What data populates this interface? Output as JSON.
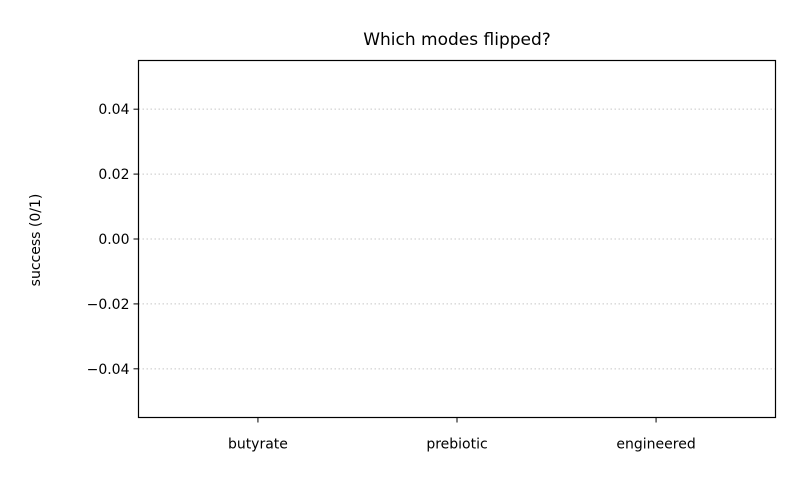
{
  "chart_data": {
    "type": "bar",
    "title": "Which modes flipped?",
    "xlabel": "",
    "ylabel": "success (0/1)",
    "categories": [
      "butyrate",
      "prebiotic",
      "engineered"
    ],
    "values": [
      0,
      0,
      0
    ],
    "ylim": [
      -0.055,
      0.055
    ],
    "yticks": [
      0.04,
      0.02,
      0.0,
      -0.02,
      -0.04
    ],
    "ytick_labels": [
      "0.04",
      "0.02",
      "0.00",
      "−0.02",
      "−0.04"
    ],
    "grid": "y-dotted",
    "bar_color": "#1f77b4"
  }
}
